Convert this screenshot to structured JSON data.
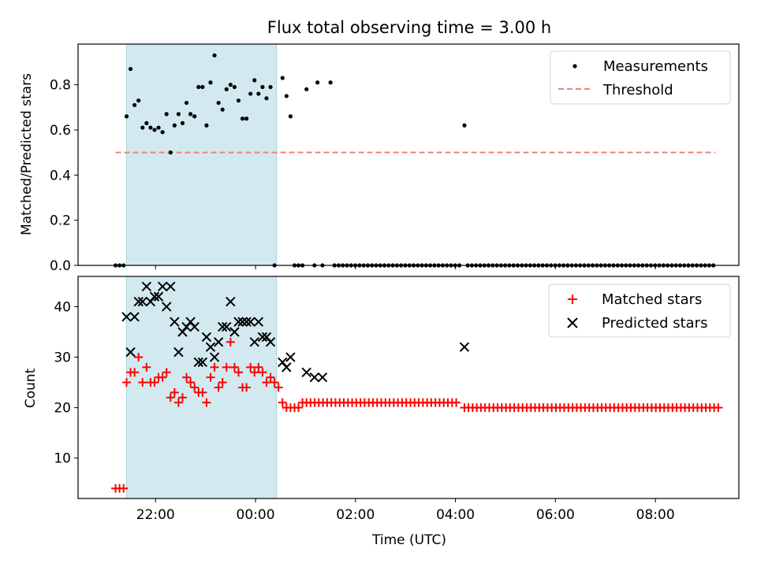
{
  "chart_data": {
    "title": "Flux total observing time = 3.00 h",
    "xlabel": "Time (UTC)",
    "x_tick_labels": [
      "22:00",
      "00:00",
      "02:00",
      "04:00",
      "06:00",
      "08:00"
    ],
    "x_ticks_hours": [
      22,
      24,
      26,
      28,
      30,
      32
    ],
    "xlim_hours": [
      20.45,
      33.67
    ],
    "shaded_interval_hours": [
      21.42,
      24.42
    ],
    "shade_color": "#d2e9f0",
    "panels": [
      {
        "type": "scatter",
        "ylabel": "Matched/Predicted stars",
        "ylim": [
          0,
          0.98
        ],
        "y_ticks": [
          0.0,
          0.2,
          0.4,
          0.6,
          0.8
        ],
        "y_tick_labels": [
          "0.0",
          "0.2",
          "0.4",
          "0.6",
          "0.8"
        ],
        "legend_position": "upper right",
        "threshold": {
          "name": "Threshold",
          "value": 0.5,
          "x_range_hours": [
            21.2,
            33.2
          ],
          "color": "#f08080"
        },
        "series": [
          {
            "name": "Measurements",
            "marker": "dot",
            "color": "#000000",
            "points": [
              [
                21.2,
                0.0
              ],
              [
                21.28,
                0.0
              ],
              [
                21.36,
                0.0
              ],
              [
                21.42,
                0.66
              ],
              [
                21.5,
                0.87
              ],
              [
                21.58,
                0.71
              ],
              [
                21.66,
                0.73
              ],
              [
                21.74,
                0.61
              ],
              [
                21.82,
                0.63
              ],
              [
                21.9,
                0.61
              ],
              [
                21.98,
                0.6
              ],
              [
                22.06,
                0.61
              ],
              [
                22.14,
                0.59
              ],
              [
                22.22,
                0.67
              ],
              [
                22.3,
                0.5
              ],
              [
                22.38,
                0.62
              ],
              [
                22.46,
                0.67
              ],
              [
                22.54,
                0.63
              ],
              [
                22.62,
                0.72
              ],
              [
                22.7,
                0.67
              ],
              [
                22.78,
                0.66
              ],
              [
                22.86,
                0.79
              ],
              [
                22.94,
                0.79
              ],
              [
                23.02,
                0.62
              ],
              [
                23.1,
                0.81
              ],
              [
                23.18,
                0.93
              ],
              [
                23.26,
                0.72
              ],
              [
                23.34,
                0.69
              ],
              [
                23.42,
                0.78
              ],
              [
                23.5,
                0.8
              ],
              [
                23.58,
                0.79
              ],
              [
                23.66,
                0.73
              ],
              [
                23.74,
                0.65
              ],
              [
                23.82,
                0.65
              ],
              [
                23.9,
                0.76
              ],
              [
                23.98,
                0.82
              ],
              [
                24.06,
                0.76
              ],
              [
                24.14,
                0.79
              ],
              [
                24.22,
                0.74
              ],
              [
                24.3,
                0.79
              ],
              [
                24.38,
                0.0
              ],
              [
                24.54,
                0.83
              ],
              [
                24.62,
                0.75
              ],
              [
                24.7,
                0.66
              ],
              [
                24.78,
                0.0
              ],
              [
                24.86,
                0.0
              ],
              [
                24.94,
                0.0
              ],
              [
                25.02,
                0.78
              ],
              [
                25.18,
                0.0
              ],
              [
                25.24,
                0.81
              ],
              [
                25.34,
                0.0
              ],
              [
                25.5,
                0.81
              ],
              [
                28.18,
                0.62
              ]
            ],
            "zero_run": {
              "from": 25.58,
              "to": 33.22,
              "step": 0.0833
            },
            "zero_run_gap": [
              28.1,
              28.22
            ]
          }
        ]
      },
      {
        "type": "scatter",
        "ylabel": "Count",
        "ylim": [
          2,
          46
        ],
        "y_ticks": [
          10,
          20,
          30,
          40
        ],
        "y_tick_labels": [
          "10",
          "20",
          "30",
          "40"
        ],
        "legend_position": "upper right",
        "series": [
          {
            "name": "Matched stars",
            "marker": "plus",
            "color": "#ff0000",
            "points": [
              [
                21.2,
                4
              ],
              [
                21.28,
                4
              ],
              [
                21.36,
                4
              ],
              [
                21.42,
                25
              ],
              [
                21.5,
                27
              ],
              [
                21.58,
                27
              ],
              [
                21.66,
                30
              ],
              [
                21.74,
                25
              ],
              [
                21.82,
                28
              ],
              [
                21.9,
                25
              ],
              [
                21.98,
                25
              ],
              [
                22.06,
                26
              ],
              [
                22.14,
                26
              ],
              [
                22.22,
                27
              ],
              [
                22.3,
                22
              ],
              [
                22.38,
                23
              ],
              [
                22.46,
                21
              ],
              [
                22.54,
                22
              ],
              [
                22.62,
                26
              ],
              [
                22.7,
                25
              ],
              [
                22.78,
                24
              ],
              [
                22.86,
                23
              ],
              [
                22.94,
                23
              ],
              [
                23.02,
                21
              ],
              [
                23.1,
                26
              ],
              [
                23.18,
                28
              ],
              [
                23.26,
                24
              ],
              [
                23.34,
                25
              ],
              [
                23.42,
                28
              ],
              [
                23.5,
                33
              ],
              [
                23.58,
                28
              ],
              [
                23.66,
                27
              ],
              [
                23.74,
                24
              ],
              [
                23.82,
                24
              ],
              [
                23.9,
                28
              ],
              [
                23.98,
                27
              ],
              [
                24.06,
                28
              ],
              [
                24.14,
                27
              ],
              [
                24.22,
                25
              ],
              [
                24.3,
                26
              ],
              [
                24.38,
                25
              ],
              [
                24.46,
                24
              ],
              [
                24.54,
                21
              ],
              [
                24.62,
                20
              ],
              [
                24.7,
                20
              ],
              [
                24.78,
                20
              ],
              [
                24.86,
                20
              ],
              [
                24.94,
                21
              ],
              [
                25.02,
                21
              ],
              [
                28.18,
                20
              ]
            ],
            "runs": [
              {
                "from": 25.1,
                "to": 28.06,
                "step": 0.0833,
                "value": 21
              },
              {
                "from": 28.26,
                "to": 33.26,
                "step": 0.0833,
                "value": 20
              }
            ]
          },
          {
            "name": "Predicted stars",
            "marker": "x",
            "color": "#000000",
            "points": [
              [
                21.42,
                38
              ],
              [
                21.5,
                31
              ],
              [
                21.58,
                38
              ],
              [
                21.66,
                41
              ],
              [
                21.74,
                41
              ],
              [
                21.82,
                44
              ],
              [
                21.9,
                41
              ],
              [
                21.98,
                42
              ],
              [
                22.06,
                42
              ],
              [
                22.14,
                44
              ],
              [
                22.22,
                40
              ],
              [
                22.3,
                44
              ],
              [
                22.38,
                37
              ],
              [
                22.46,
                31
              ],
              [
                22.54,
                35
              ],
              [
                22.62,
                36
              ],
              [
                22.7,
                37
              ],
              [
                22.78,
                36
              ],
              [
                22.86,
                29
              ],
              [
                22.94,
                29
              ],
              [
                23.02,
                34
              ],
              [
                23.1,
                32
              ],
              [
                23.18,
                30
              ],
              [
                23.26,
                33
              ],
              [
                23.34,
                36
              ],
              [
                23.42,
                36
              ],
              [
                23.5,
                41
              ],
              [
                23.58,
                35
              ],
              [
                23.66,
                37
              ],
              [
                23.74,
                37
              ],
              [
                23.82,
                37
              ],
              [
                23.9,
                37
              ],
              [
                23.98,
                33
              ],
              [
                24.06,
                37
              ],
              [
                24.14,
                34
              ],
              [
                24.22,
                34
              ],
              [
                24.3,
                33
              ],
              [
                24.54,
                29
              ],
              [
                24.62,
                28
              ],
              [
                24.7,
                30
              ],
              [
                25.02,
                27
              ],
              [
                25.18,
                26
              ],
              [
                25.34,
                26
              ],
              [
                28.18,
                32
              ]
            ]
          }
        ]
      }
    ]
  }
}
